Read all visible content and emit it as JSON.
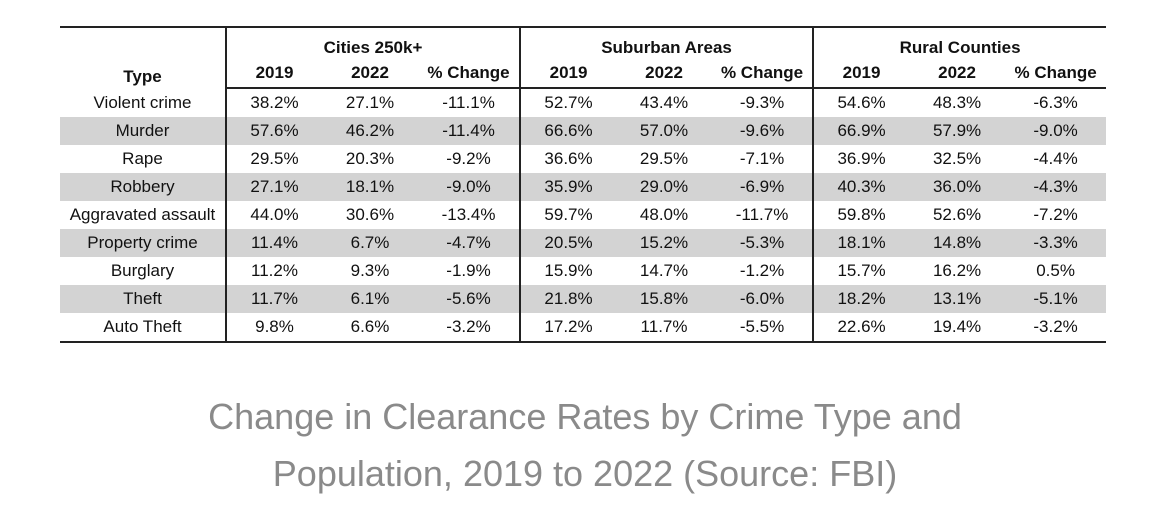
{
  "table": {
    "type_header": "Type",
    "groups": [
      "Cities 250k+",
      "Suburban Areas",
      "Rural Counties"
    ],
    "sub_headers": [
      "2019",
      "2022",
      "% Change"
    ],
    "rows": [
      {
        "type": "Violent crime",
        "values": [
          "38.2%",
          "27.1%",
          "-11.1%",
          "52.7%",
          "43.4%",
          "-9.3%",
          "54.6%",
          "48.3%",
          "-6.3%"
        ]
      },
      {
        "type": "Murder",
        "values": [
          "57.6%",
          "46.2%",
          "-11.4%",
          "66.6%",
          "57.0%",
          "-9.6%",
          "66.9%",
          "57.9%",
          "-9.0%"
        ]
      },
      {
        "type": "Rape",
        "values": [
          "29.5%",
          "20.3%",
          "-9.2%",
          "36.6%",
          "29.5%",
          "-7.1%",
          "36.9%",
          "32.5%",
          "-4.4%"
        ]
      },
      {
        "type": "Robbery",
        "values": [
          "27.1%",
          "18.1%",
          "-9.0%",
          "35.9%",
          "29.0%",
          "-6.9%",
          "40.3%",
          "36.0%",
          "-4.3%"
        ]
      },
      {
        "type": "Aggravated assault",
        "values": [
          "44.0%",
          "30.6%",
          "-13.4%",
          "59.7%",
          "48.0%",
          "-11.7%",
          "59.8%",
          "52.6%",
          "-7.2%"
        ]
      },
      {
        "type": "Property crime",
        "values": [
          "11.4%",
          "6.7%",
          "-4.7%",
          "20.5%",
          "15.2%",
          "-5.3%",
          "18.1%",
          "14.8%",
          "-3.3%"
        ]
      },
      {
        "type": "Burglary",
        "values": [
          "11.2%",
          "9.3%",
          "-1.9%",
          "15.9%",
          "14.7%",
          "-1.2%",
          "15.7%",
          "16.2%",
          "0.5%"
        ]
      },
      {
        "type": "Theft",
        "values": [
          "11.7%",
          "6.1%",
          "-5.6%",
          "21.8%",
          "15.8%",
          "-6.0%",
          "18.2%",
          "13.1%",
          "-5.1%"
        ]
      },
      {
        "type": "Auto Theft",
        "values": [
          "9.8%",
          "6.6%",
          "-3.2%",
          "17.2%",
          "11.7%",
          "-5.5%",
          "22.6%",
          "19.4%",
          "-3.2%"
        ]
      }
    ]
  },
  "caption": {
    "line1": "Change in Clearance Rates by Crime Type and",
    "line2": "Population, 2019 to 2022 (Source: FBI)"
  },
  "colors": {
    "shaded_row": "#d3d3d3",
    "caption_text": "#8a8a8a"
  }
}
